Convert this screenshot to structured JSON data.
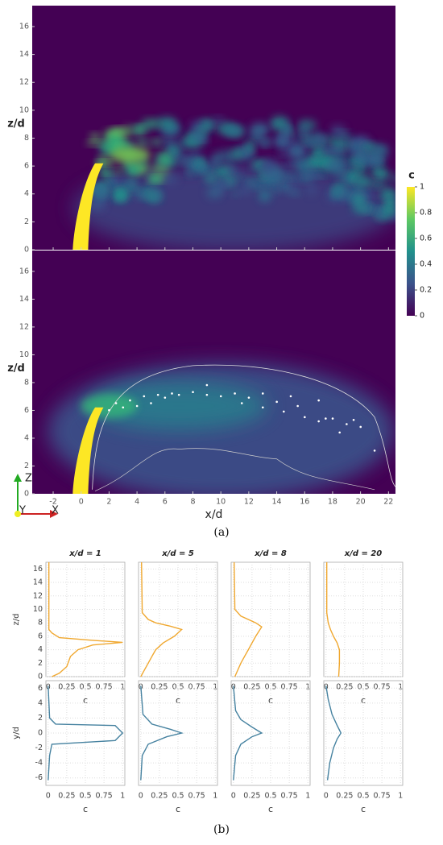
{
  "chart_data": [
    {
      "type": "heatmap",
      "xlabel": "x/d",
      "ylabel": "z/d",
      "xlim": [
        -3.5,
        22.5
      ],
      "ylim": [
        0,
        17.5
      ],
      "xticks": [
        -2,
        0,
        2,
        4,
        6,
        8,
        10,
        12,
        14,
        16,
        18,
        20,
        22
      ],
      "yticks": [
        0,
        2,
        4,
        6,
        8,
        10,
        12,
        14,
        16
      ],
      "colorbar": {
        "label": "c",
        "lim": [
          0,
          1
        ],
        "ticks": [
          0,
          0.2,
          0.4,
          0.6,
          0.8,
          1
        ]
      }
    },
    {
      "type": "heatmap",
      "xlabel": "x/d",
      "ylabel": "z/d",
      "xlim": [
        -3.5,
        22.5
      ],
      "ylim": [
        0,
        17.5
      ],
      "xticks": [
        -2,
        0,
        2,
        4,
        6,
        8,
        10,
        12,
        14,
        16,
        18,
        20,
        22
      ],
      "yticks": [
        0,
        2,
        4,
        6,
        8,
        10,
        12,
        14,
        16
      ],
      "axes_triad": [
        "Z",
        "Y",
        "X"
      ]
    },
    {
      "type": "line",
      "title": "x/d = 1",
      "xlabel": "c",
      "ylabel": "z/d",
      "color": "#f0a830",
      "xlim": [
        -0.03,
        1.03
      ],
      "ylim": [
        0,
        17
      ],
      "xticks": [
        0,
        0.25,
        0.5,
        0.75,
        1
      ],
      "yticks": [
        0,
        2,
        4,
        6,
        8,
        10,
        12,
        14,
        16
      ],
      "values": [
        0.05,
        0.15,
        0.25,
        0.3,
        0.4,
        0.6,
        1.0,
        0.6,
        0.15,
        0.05,
        0.01,
        0.01
      ],
      "y": [
        0,
        0.5,
        1.5,
        3,
        4,
        4.7,
        5.1,
        5.4,
        5.8,
        6.5,
        7,
        17
      ]
    },
    {
      "type": "line",
      "title": "x/d = 5",
      "xlabel": "c",
      "color": "#f0a830",
      "xlim": [
        -0.03,
        1.03
      ],
      "ylim": [
        0,
        17
      ],
      "xticks": [
        0,
        0.25,
        0.5,
        0.75,
        1
      ],
      "yticks": [
        0,
        2,
        4,
        6,
        8,
        10,
        12,
        14,
        16
      ],
      "values": [
        0,
        0.05,
        0.1,
        0.15,
        0.2,
        0.3,
        0.45,
        0.55,
        0.4,
        0.2,
        0.1,
        0.02,
        0.01
      ],
      "y": [
        0,
        1,
        2,
        3,
        4,
        5,
        6,
        7,
        7.5,
        8,
        8.5,
        9.5,
        17
      ]
    },
    {
      "type": "line",
      "title": "x/d = 8",
      "xlabel": "c",
      "color": "#f0a830",
      "xlim": [
        -0.03,
        1.03
      ],
      "ylim": [
        0,
        17
      ],
      "xticks": [
        0,
        0.25,
        0.5,
        0.75,
        1
      ],
      "yticks": [
        0,
        2,
        4,
        6,
        8,
        10,
        12,
        14,
        16
      ],
      "values": [
        0.02,
        0.06,
        0.1,
        0.15,
        0.2,
        0.25,
        0.3,
        0.38,
        0.3,
        0.1,
        0.02,
        0.01
      ],
      "y": [
        0,
        1,
        2,
        3,
        4,
        5,
        6,
        7.4,
        8,
        9,
        10,
        17
      ]
    },
    {
      "type": "line",
      "title": "x/d = 20",
      "xlabel": "c",
      "color": "#f0a830",
      "xlim": [
        -0.03,
        1.03
      ],
      "ylim": [
        0,
        17
      ],
      "xticks": [
        0,
        0.25,
        0.5,
        0.75,
        1
      ],
      "yticks": [
        0,
        2,
        4,
        6,
        8,
        10,
        12,
        14,
        16
      ],
      "values": [
        0.17,
        0.18,
        0.18,
        0.15,
        0.1,
        0.06,
        0.03,
        0.01,
        0.01
      ],
      "y": [
        0,
        2,
        4,
        5,
        6,
        7,
        8,
        9.5,
        17
      ]
    },
    {
      "type": "line",
      "xlabel": "c",
      "ylabel": "y/d",
      "color": "#4682a0",
      "xlim": [
        -0.03,
        1.03
      ],
      "ylim": [
        -7,
        7
      ],
      "xticks": [
        0,
        0.25,
        0.5,
        0.75,
        1
      ],
      "yticks": [
        -6,
        -4,
        -2,
        0,
        2,
        4,
        6
      ],
      "values": [
        0,
        0.02,
        0.05,
        0.9,
        1,
        0.95,
        0.9,
        0.1,
        0.02,
        0
      ],
      "y": [
        -6.3,
        -3,
        -1.5,
        -1,
        0,
        0.5,
        1,
        1.2,
        2,
        6.3
      ]
    },
    {
      "type": "line",
      "xlabel": "c",
      "color": "#4682a0",
      "xlim": [
        -0.03,
        1.03
      ],
      "ylim": [
        -7,
        7
      ],
      "xticks": [
        0,
        0.25,
        0.5,
        0.75,
        1
      ],
      "yticks": [
        -6,
        -4,
        -2,
        0,
        2,
        4,
        6
      ],
      "values": [
        0,
        0.02,
        0.1,
        0.35,
        0.55,
        0.4,
        0.15,
        0.03,
        0
      ],
      "y": [
        -6.3,
        -3,
        -1.5,
        -0.5,
        0,
        0.5,
        1.2,
        2.5,
        6.3
      ]
    },
    {
      "type": "line",
      "xlabel": "c",
      "color": "#4682a0",
      "xlim": [
        -0.03,
        1.03
      ],
      "ylim": [
        -7,
        7
      ],
      "xticks": [
        0,
        0.25,
        0.5,
        0.75,
        1
      ],
      "yticks": [
        -6,
        -4,
        -2,
        0,
        2,
        4,
        6
      ],
      "values": [
        0,
        0.03,
        0.1,
        0.25,
        0.38,
        0.25,
        0.1,
        0.03,
        0
      ],
      "y": [
        -6.3,
        -3,
        -1.5,
        -0.5,
        0,
        0.8,
        1.8,
        3,
        6.3
      ]
    },
    {
      "type": "line",
      "xlabel": "c",
      "color": "#4682a0",
      "xlim": [
        -0.03,
        1.03
      ],
      "ylim": [
        -7,
        7
      ],
      "xticks": [
        0,
        0.25,
        0.5,
        0.75,
        1
      ],
      "yticks": [
        -6,
        -4,
        -2,
        0,
        2,
        4,
        6
      ],
      "values": [
        0.02,
        0.05,
        0.1,
        0.15,
        0.2,
        0.15,
        0.08,
        0.03,
        0
      ],
      "y": [
        -6.3,
        -4,
        -2,
        -0.8,
        0,
        1,
        2.5,
        4.5,
        6.3
      ]
    }
  ],
  "captions": [
    "(a)",
    "(b)"
  ]
}
